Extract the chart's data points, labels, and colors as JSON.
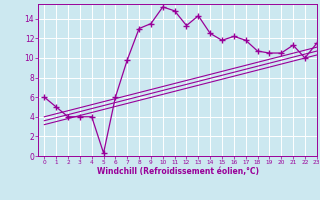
{
  "xlabel": "Windchill (Refroidissement éolien,°C)",
  "bg_color": "#cce8f0",
  "line_color": "#990099",
  "grid_color": "#ffffff",
  "curve_x": [
    0,
    1,
    2,
    3,
    4,
    5,
    6,
    7,
    8,
    9,
    10,
    11,
    12,
    13,
    14,
    15,
    16,
    17,
    18,
    19,
    20,
    21,
    22,
    23
  ],
  "curve_y": [
    6.0,
    5.0,
    4.0,
    4.0,
    4.0,
    0.3,
    6.0,
    9.8,
    13.0,
    13.5,
    15.2,
    14.8,
    13.3,
    14.3,
    12.5,
    11.8,
    12.2,
    11.8,
    10.7,
    10.5,
    10.5,
    11.3,
    10.0,
    11.5
  ],
  "line1_x": [
    0,
    23
  ],
  "line1_y": [
    3.2,
    10.3
  ],
  "line2_x": [
    0,
    23
  ],
  "line2_y": [
    3.6,
    10.7
  ],
  "line3_x": [
    0,
    23
  ],
  "line3_y": [
    4.0,
    11.1
  ],
  "xlim": [
    -0.5,
    23
  ],
  "ylim": [
    0,
    15.5
  ],
  "yticks": [
    0,
    2,
    4,
    6,
    8,
    10,
    12,
    14
  ],
  "xticks": [
    0,
    1,
    2,
    3,
    4,
    5,
    6,
    7,
    8,
    9,
    10,
    11,
    12,
    13,
    14,
    15,
    16,
    17,
    18,
    19,
    20,
    21,
    22,
    23
  ]
}
